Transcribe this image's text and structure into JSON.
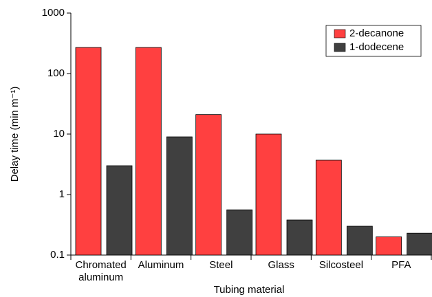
{
  "chart_data": {
    "type": "bar",
    "x_label": "Tubing material",
    "y_label": "Delay time (min m⁻¹)",
    "categories": [
      "Chromated aluminum",
      "Aluminum",
      "Steel",
      "Glass",
      "Silcosteel",
      "PFA"
    ],
    "series": [
      {
        "name": "2-decanone",
        "color": "#ff4040",
        "values": [
          270,
          270,
          21,
          10,
          3.7,
          0.2
        ]
      },
      {
        "name": "1-dodecene",
        "color": "#404040",
        "values": [
          3.0,
          9.0,
          0.56,
          0.38,
          0.3,
          0.23
        ]
      }
    ],
    "ylim": [
      0.1,
      1000
    ],
    "yticks": [
      0.1,
      1,
      10,
      100,
      1000
    ],
    "log_y": true,
    "legend": "upper right"
  }
}
